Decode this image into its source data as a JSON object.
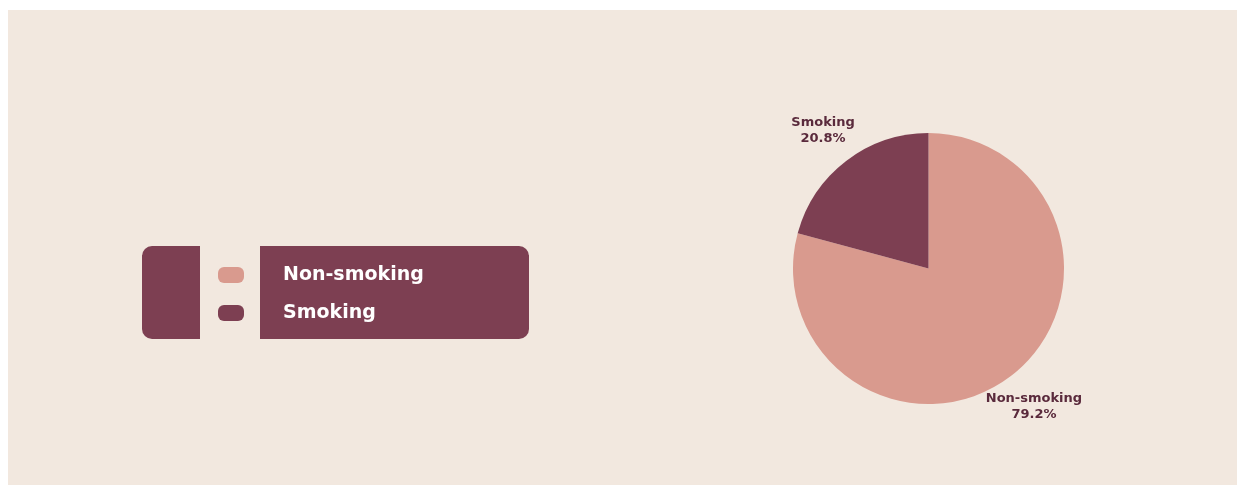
{
  "chart_data": {
    "type": "pie",
    "categories": [
      "Non-smoking",
      "Smoking"
    ],
    "values": [
      79.2,
      20.8
    ],
    "colors": [
      "#d99a8e",
      "#7d3f52"
    ],
    "value_labels": [
      "79.2%",
      "20.8%"
    ],
    "legend": "left"
  }
}
